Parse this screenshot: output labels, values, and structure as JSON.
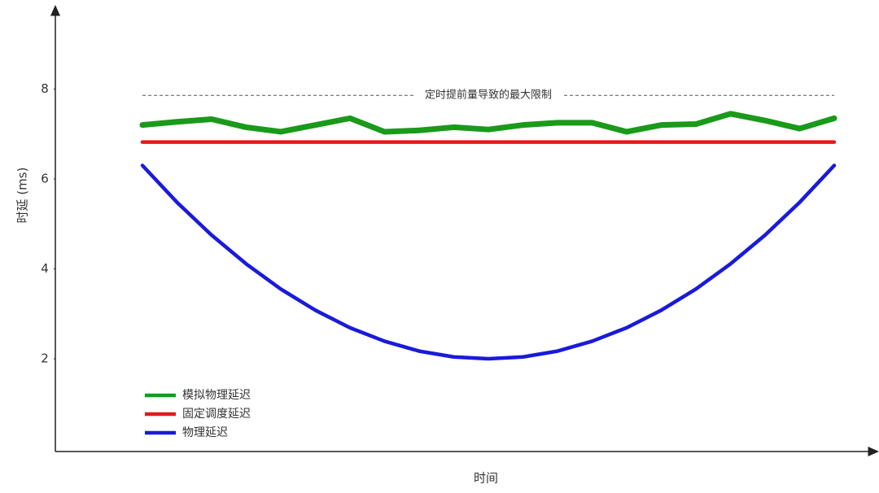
{
  "chart_data": {
    "type": "line",
    "x_label": "时间",
    "y_label": "时延 (ms)",
    "x": [
      0,
      1,
      2,
      3,
      4,
      5,
      6,
      7,
      8,
      9,
      10,
      11,
      12,
      13,
      14,
      15,
      16,
      17,
      18,
      19,
      20
    ],
    "xlim": [
      0,
      20
    ],
    "ylim": [
      0,
      9.8
    ],
    "yticks": [
      2,
      4,
      6,
      8
    ],
    "series": [
      {
        "name": "模拟物理延迟",
        "color": "#1a9a1a",
        "values": [
          7.2,
          7.27,
          7.33,
          7.15,
          7.05,
          7.2,
          7.35,
          7.05,
          7.08,
          7.15,
          7.1,
          7.2,
          7.25,
          7.25,
          7.05,
          7.2,
          7.22,
          7.45,
          7.3,
          7.12,
          7.35
        ]
      },
      {
        "name": "固定调度延迟",
        "color": "#e31a1a",
        "values": [
          6.82,
          6.82,
          6.82,
          6.82,
          6.82,
          6.82,
          6.82,
          6.82,
          6.82,
          6.82,
          6.82,
          6.82,
          6.82,
          6.82,
          6.82,
          6.82,
          6.82,
          6.82,
          6.82,
          6.82,
          6.82
        ]
      },
      {
        "name": "物理延迟",
        "color": "#1a1adb",
        "values": [
          6.3,
          5.48,
          4.75,
          4.11,
          3.55,
          3.08,
          2.69,
          2.39,
          2.17,
          2.04,
          2.0,
          2.04,
          2.17,
          2.39,
          2.69,
          3.08,
          3.55,
          4.11,
          4.75,
          5.48,
          6.3
        ]
      }
    ],
    "reference_line": {
      "value": 7.86,
      "label": "定时提前量导致的最大限制"
    },
    "legend": "lower-left"
  }
}
